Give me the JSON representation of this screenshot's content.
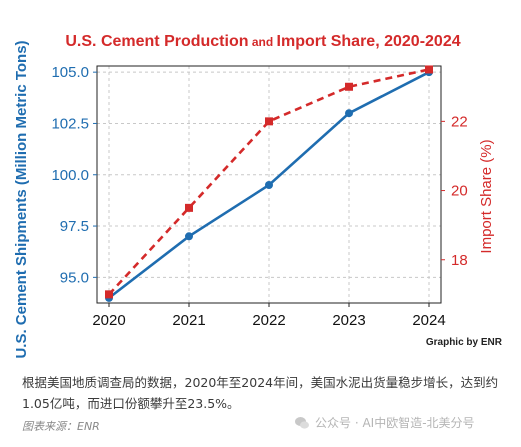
{
  "chart_data": {
    "type": "line",
    "title_main": "U.S. Cement Production",
    "title_join": " and ",
    "title_end": "Import Share, 2020-2024",
    "x": [
      2020,
      2021,
      2022,
      2023,
      2024
    ],
    "xlim": [
      2020,
      2024
    ],
    "series": [
      {
        "name": "U.S. Cement Shipments (Million Metric Tons)",
        "axis": "left",
        "style": "solid",
        "marker": "circle",
        "color": "#1f6db0",
        "values": [
          94.0,
          97.0,
          99.5,
          103.0,
          105.0
        ]
      },
      {
        "name": "Import Share (%)",
        "axis": "right",
        "style": "dashed",
        "marker": "square",
        "color": "#d42a2a",
        "values": [
          17.0,
          19.5,
          22.0,
          23.0,
          23.5
        ]
      }
    ],
    "ylabel_left": "U.S. Cement Shipments (Million Metric Tons)",
    "ylabel_right": "Import Share (%)",
    "ylim_left": [
      93.75,
      105.3
    ],
    "ylim_right": [
      16.75,
      23.6
    ],
    "yticks_left": [
      "95.0",
      "97.5",
      "100.0",
      "102.5",
      "105.0"
    ],
    "yticks_right": [
      "18",
      "20",
      "22"
    ],
    "xticks": [
      "2020",
      "2021",
      "2022",
      "2023",
      "2024"
    ],
    "grid": true,
    "credit": "Graphic by ENR",
    "title_color": "#d42a2a"
  },
  "caption": "根据美国地质调查局的数据，2020年至2024年间，美国水泥出货量稳步增长，达到约1.05亿吨，而进口份额攀升至23.5%。",
  "source": "图表来源：ENR",
  "watermark": "公众号 · AI中欧智造-北美分号"
}
